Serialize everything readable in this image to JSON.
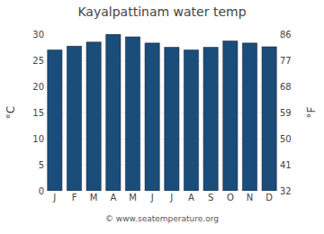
{
  "chart_data": {
    "type": "bar",
    "title": "Kayalpattinam water temp",
    "categories": [
      "J",
      "F",
      "M",
      "A",
      "M",
      "J",
      "J",
      "A",
      "S",
      "O",
      "N",
      "D"
    ],
    "values": [
      27.0,
      27.7,
      28.5,
      30.0,
      29.5,
      28.3,
      27.5,
      27.0,
      27.5,
      28.7,
      28.3,
      27.6
    ],
    "color": "#1a4d7a",
    "ylabel": "°C",
    "y2label": "°F",
    "ylim": [
      0,
      30
    ],
    "yticks": [
      0,
      5,
      10,
      15,
      20,
      25,
      30
    ],
    "y2lim": [
      32,
      86
    ],
    "y2ticks": [
      32,
      41,
      50,
      59,
      68,
      77,
      86
    ],
    "grid": true,
    "annotations": [
      "© www.seatemperature.org"
    ]
  }
}
